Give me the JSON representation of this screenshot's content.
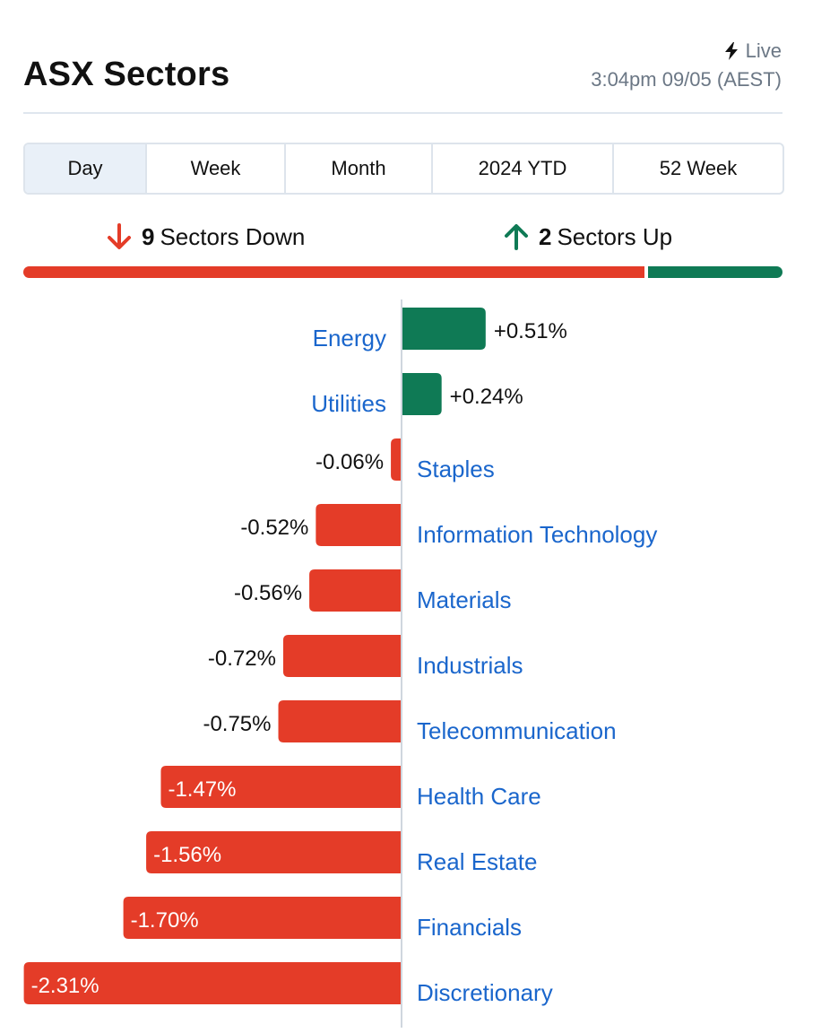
{
  "header": {
    "title": "ASX Sectors",
    "live_label": "Live",
    "timestamp": "3:04pm 09/05 (AEST)"
  },
  "tabs": [
    {
      "label": "Day",
      "active": true
    },
    {
      "label": "Week",
      "active": false
    },
    {
      "label": "Month",
      "active": false
    },
    {
      "label": "2024 YTD",
      "active": false
    },
    {
      "label": "52 Week",
      "active": false
    }
  ],
  "summary": {
    "down_count": "9",
    "down_label": "Sectors Down",
    "up_count": "2",
    "up_label": "Sectors Up"
  },
  "colors": {
    "negative": "#e43c28",
    "positive": "#0f7a55",
    "link": "#1a66cc"
  },
  "chart_data": {
    "type": "bar",
    "orientation": "horizontal-diverging",
    "categories": [
      "Energy",
      "Utilities",
      "Staples",
      "Information Technology",
      "Materials",
      "Industrials",
      "Telecommunication",
      "Health Care",
      "Real Estate",
      "Financials",
      "Discretionary"
    ],
    "values": [
      0.51,
      0.24,
      -0.06,
      -0.52,
      -0.56,
      -0.72,
      -0.75,
      -1.47,
      -1.56,
      -1.7,
      -2.31
    ],
    "value_labels": [
      "+0.51%",
      "+0.24%",
      "-0.06%",
      "-0.52%",
      "-0.56%",
      "-0.72%",
      "-0.75%",
      "-1.47%",
      "-1.56%",
      "-1.70%",
      "-2.31%"
    ]
  }
}
